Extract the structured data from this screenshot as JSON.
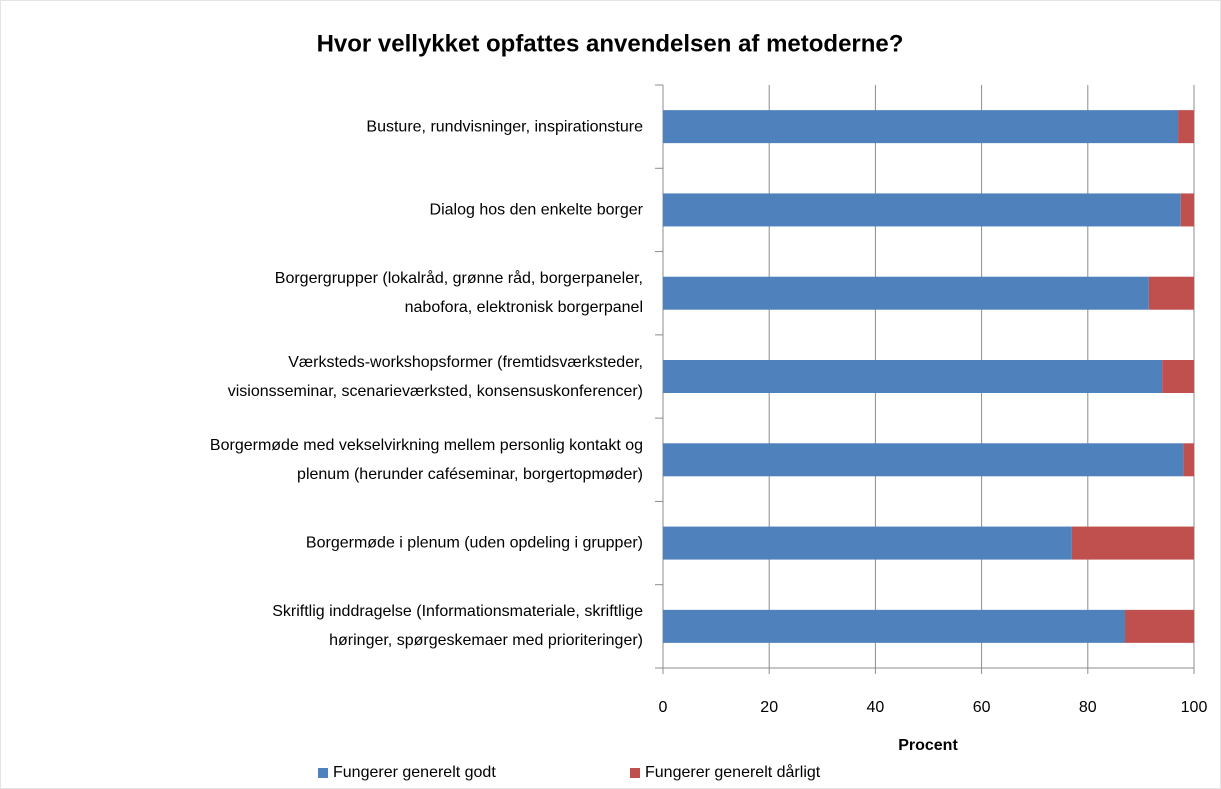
{
  "chart_data": {
    "type": "stacked_barh",
    "title": "Hvor vellykket opfattes anvendelsen af metoderne?",
    "x_label": "Procent",
    "categories": [
      "Busture, rundvisninger, inspirationsture",
      "Dialog hos den enkelte borger",
      "Borgergrupper (lokalråd, grønne råd, borgerpaneler,\nnabofora, elektronisk borgerpanel",
      "Værksteds-workshopsformer (fremtidsværksteder,\nvisionsseminar, scenarieværksted, konsensuskonferencer)",
      "Borgermøde med vekselvirkning mellem personlig kontakt og\nplenum (herunder caféseminar, borgertopmøder)",
      "Borgermøde i plenum (uden opdeling i grupper)",
      "Skriftlig inddragelse (Informationsmateriale, skriftlige\nhøringer, spørgeskemaer med prioriteringer)"
    ],
    "series": [
      {
        "name": "Fungerer generelt godt",
        "color": "#4f81bd",
        "values": [
          97,
          97.5,
          91.5,
          94,
          98,
          77,
          87
        ]
      },
      {
        "name": "Fungerer generelt dårligt",
        "color": "#c0504d",
        "values": [
          3,
          2.5,
          8.5,
          6,
          2,
          23,
          13
        ]
      }
    ],
    "xlim": [
      0,
      100
    ],
    "xticks": [
      0,
      20,
      40,
      60,
      80,
      100
    ],
    "grid": true,
    "legend": "bottom"
  }
}
